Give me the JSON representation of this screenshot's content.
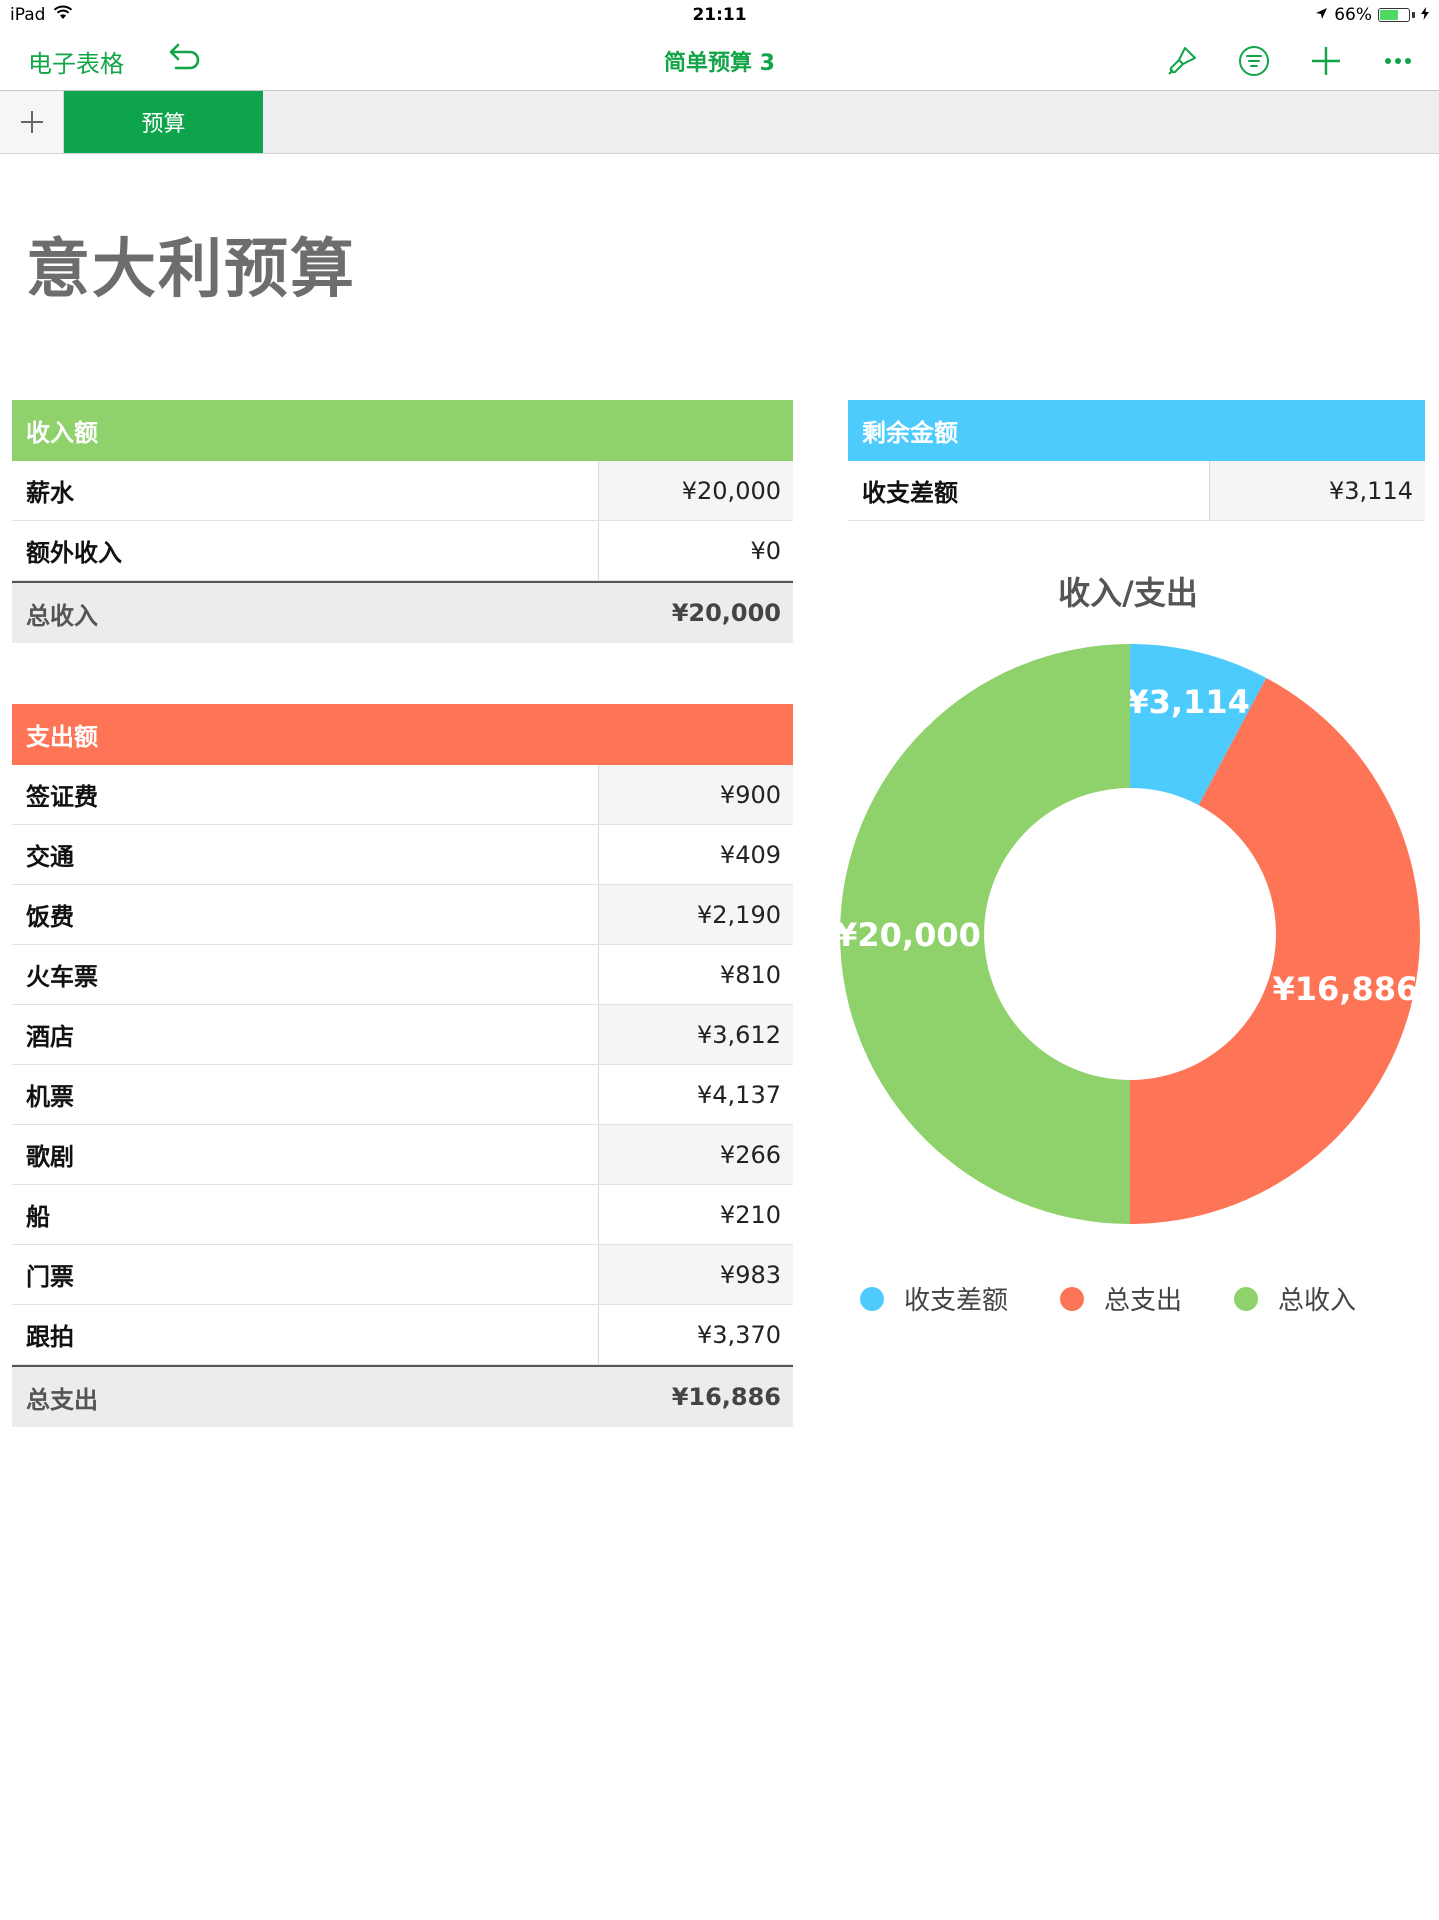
{
  "status_bar": {
    "device": "iPad",
    "time": "21:11",
    "battery": "66%",
    "battery_level": 0.66
  },
  "nav": {
    "back_label": "电子表格",
    "doc_title": "简单预算 3"
  },
  "tabs": {
    "add_label": "+",
    "active_tab": "预算"
  },
  "sheet_title": "意大利预算",
  "colors": {
    "accent": "#12a548",
    "income": "#8fd16b",
    "expense": "#fd7456",
    "balance": "#4ecbfd"
  },
  "income_table": {
    "header": "收入额",
    "rows": [
      {
        "label": "薪水",
        "value": "¥20,000"
      },
      {
        "label": "额外收入",
        "value": "¥0"
      }
    ],
    "total": {
      "label": "总收入",
      "value": "¥20,000"
    }
  },
  "expense_table": {
    "header": "支出额",
    "rows": [
      {
        "label": "签证费",
        "value": "¥900"
      },
      {
        "label": "交通",
        "value": "¥409"
      },
      {
        "label": "饭费",
        "value": "¥2,190"
      },
      {
        "label": "火车票",
        "value": "¥810"
      },
      {
        "label": "酒店",
        "value": "¥3,612"
      },
      {
        "label": "机票",
        "value": "¥4,137"
      },
      {
        "label": "歌剧",
        "value": "¥266"
      },
      {
        "label": "船",
        "value": "¥210"
      },
      {
        "label": "门票",
        "value": "¥983"
      },
      {
        "label": "跟拍",
        "value": "¥3,370"
      }
    ],
    "total": {
      "label": "总支出",
      "value": "¥16,886"
    }
  },
  "balance_table": {
    "header": "剩余金额",
    "rows": [
      {
        "label": "收支差额",
        "value": "¥3,114"
      }
    ]
  },
  "chart_data": {
    "type": "pie",
    "title": "收入/支出",
    "donut": true,
    "legend_position": "bottom",
    "series": [
      {
        "name": "收支差额",
        "value": 3114,
        "label": "¥3,114",
        "color": "#4ecbfd"
      },
      {
        "name": "总支出",
        "value": 16886,
        "label": "¥16,886",
        "color": "#fd7456"
      },
      {
        "name": "总收入",
        "value": 20000,
        "label": "¥20,000",
        "color": "#8fd16b"
      }
    ]
  }
}
